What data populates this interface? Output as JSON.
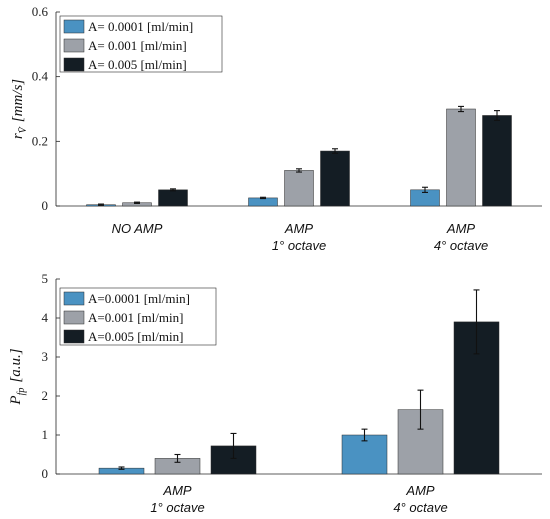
{
  "colors": [
    "#4a92c2",
    "#9da1a8",
    "#141d24"
  ],
  "chart_data": [
    {
      "type": "bar",
      "ylabel": "r",
      "ylabel_sub": "V̄",
      "ylabel_unit": "[mm/s]",
      "ylim": [
        0,
        0.6
      ],
      "yticks": [
        "0",
        "0.2",
        "0.4",
        "0.6"
      ],
      "ytick_values": [
        0,
        0.2,
        0.4,
        0.6
      ],
      "categories": [
        [
          "NO AMP"
        ],
        [
          "AMP",
          "1° octave"
        ],
        [
          "AMP",
          "4° octave"
        ]
      ],
      "legend_position": "top-left",
      "series": [
        {
          "name": "A= 0.0001 [ml/min]",
          "values": [
            0.004,
            0.025,
            0.05
          ],
          "errors": [
            0.002,
            0.002,
            0.008
          ]
        },
        {
          "name": "A= 0.001 [ml/min]",
          "values": [
            0.01,
            0.11,
            0.3
          ],
          "errors": [
            0.002,
            0.005,
            0.008
          ]
        },
        {
          "name": "A= 0.005 [ml/min]",
          "values": [
            0.05,
            0.17,
            0.28
          ],
          "errors": [
            0.003,
            0.007,
            0.015
          ]
        }
      ]
    },
    {
      "type": "bar",
      "ylabel": "P",
      "ylabel_sub": "fp",
      "ylabel_unit": "[a.u.]",
      "ylim": [
        0,
        5
      ],
      "yticks": [
        "0",
        "1",
        "2",
        "3",
        "4",
        "5"
      ],
      "ytick_values": [
        0,
        1,
        2,
        3,
        4,
        5
      ],
      "categories": [
        [
          "AMP",
          "1° octave"
        ],
        [
          "AMP",
          "4° octave"
        ]
      ],
      "legend_position": "top-left",
      "series": [
        {
          "name": "A=0.0001 [ml/min]",
          "values": [
            0.15,
            1.0
          ],
          "errors": [
            0.03,
            0.15
          ]
        },
        {
          "name": "A=0.001 [ml/min]",
          "values": [
            0.4,
            1.65
          ],
          "errors": [
            0.1,
            0.5
          ]
        },
        {
          "name": "A=0.005 [ml/min]",
          "values": [
            0.72,
            3.9
          ],
          "errors": [
            0.32,
            0.82
          ]
        }
      ]
    }
  ]
}
